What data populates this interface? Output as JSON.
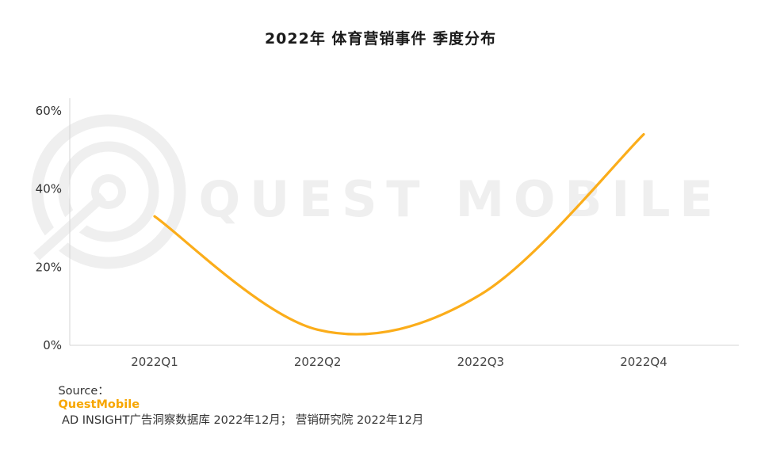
{
  "title": "2022年 体育营销事件 季度分布",
  "watermark": "QUEST MOBILE",
  "source": {
    "prefix": "Source：",
    "brand": "QuestMobile",
    "rest": " AD INSIGHT广告洞察数据库 2022年12月； 营销研究院 2022年12月"
  },
  "colors": {
    "line": "#FBAD1A",
    "brand": "#F7A600",
    "axis": "#D6D6D6",
    "text": "#333333",
    "watermark": "#EFEFEF"
  },
  "chart_data": {
    "type": "line",
    "smooth": true,
    "categories": [
      "2022Q1",
      "2022Q2",
      "2022Q3",
      "2022Q4"
    ],
    "values": [
      33,
      4,
      13,
      54
    ],
    "title": "2022年 体育营销事件 季度分布",
    "xlabel": "",
    "ylabel": "",
    "ylim": [
      0,
      60
    ],
    "yticks": [
      0,
      20,
      40,
      60
    ],
    "ytick_suffix": "%",
    "grid": false,
    "legend": false
  }
}
